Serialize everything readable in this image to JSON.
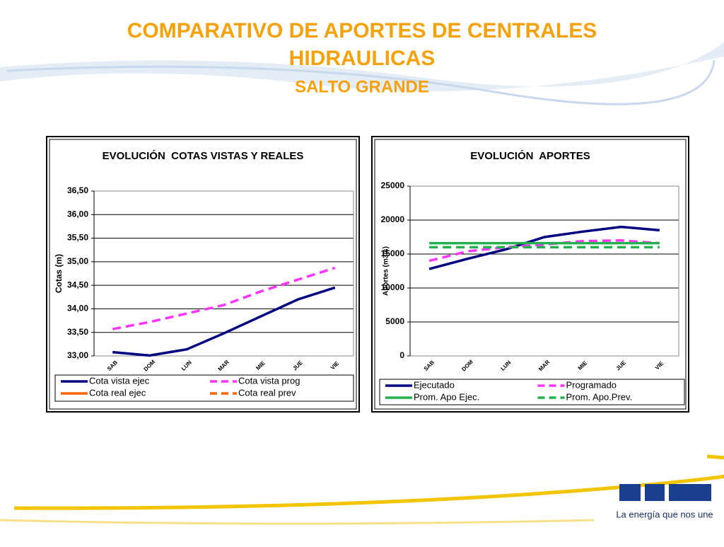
{
  "page": {
    "title": "COMPARATIVO DE APORTES DE CENTRALES HIDRAULICAS",
    "subtitle": "SALTO GRANDE",
    "tagline": "La energía que nos une"
  },
  "chart_data": [
    {
      "type": "line",
      "title": "EVOLUCIÓN  COTAS VISTAS Y REALES",
      "y_label": "Cotas (m)",
      "categories": [
        "SAB",
        "DOM",
        "LUN",
        "MAR",
        "MIE",
        "JUE",
        "VIE"
      ],
      "ylim": [
        33,
        36.5
      ],
      "yticks": [
        {
          "value": 33,
          "label": "33,00"
        },
        {
          "value": 33.5,
          "label": "33,50"
        },
        {
          "value": 34,
          "label": "34,00"
        },
        {
          "value": 34.5,
          "label": "34,50"
        },
        {
          "value": 35,
          "label": "35,00"
        },
        {
          "value": 35.5,
          "label": "35,50"
        },
        {
          "value": 36,
          "label": "36,00"
        },
        {
          "value": 36.5,
          "label": "36,50"
        }
      ],
      "grid": true,
      "series": [
        {
          "name": "Cota vista ejec",
          "color": "#000080",
          "dashed": false,
          "values": [
            33.08,
            33.01,
            33.14,
            33.48,
            33.84,
            34.2,
            34.45
          ]
        },
        {
          "name": "Cota vista prog",
          "color": "#ff33ff",
          "dashed": true,
          "values": [
            33.57,
            33.72,
            33.9,
            34.08,
            34.37,
            34.62,
            34.87
          ]
        },
        {
          "name": "Cota real ejec",
          "color": "#ff6600",
          "dashed": false,
          "values": [
            null,
            null,
            null,
            null,
            null,
            null,
            null
          ]
        },
        {
          "name": "Cota real prev",
          "color": "#ff6600",
          "dashed": true,
          "values": [
            null,
            null,
            null,
            null,
            null,
            null,
            null
          ]
        }
      ]
    },
    {
      "type": "line",
      "title": "EVOLUCIÓN  APORTES",
      "y_label": "Aportes (m3/s)",
      "categories": [
        "SAB",
        "DOM",
        "LUN",
        "MAR",
        "MIE",
        "JUE",
        "VIE"
      ],
      "ylim": [
        0,
        25000
      ],
      "yticks": [
        0,
        5000,
        10000,
        15000,
        20000,
        25000
      ],
      "grid": true,
      "series": [
        {
          "name": "Ejecutado",
          "color": "#000080",
          "dashed": false,
          "values": [
            12800,
            14300,
            15700,
            17500,
            18300,
            19000,
            18500
          ]
        },
        {
          "name": "Programado",
          "color": "#ff33ff",
          "dashed": true,
          "values": [
            14000,
            15400,
            16000,
            16400,
            16900,
            17000,
            16600
          ]
        },
        {
          "name": "Prom. Apo Ejec.",
          "color": "#22b14c",
          "dashed": false,
          "values": [
            16600,
            16600,
            16600,
            16600,
            16600,
            16600,
            16600
          ]
        },
        {
          "name": "Prom. Apo.Prev.",
          "color": "#22b14c",
          "dashed": true,
          "values": [
            16000,
            16000,
            16000,
            16000,
            16000,
            16000,
            16000
          ]
        }
      ]
    }
  ]
}
